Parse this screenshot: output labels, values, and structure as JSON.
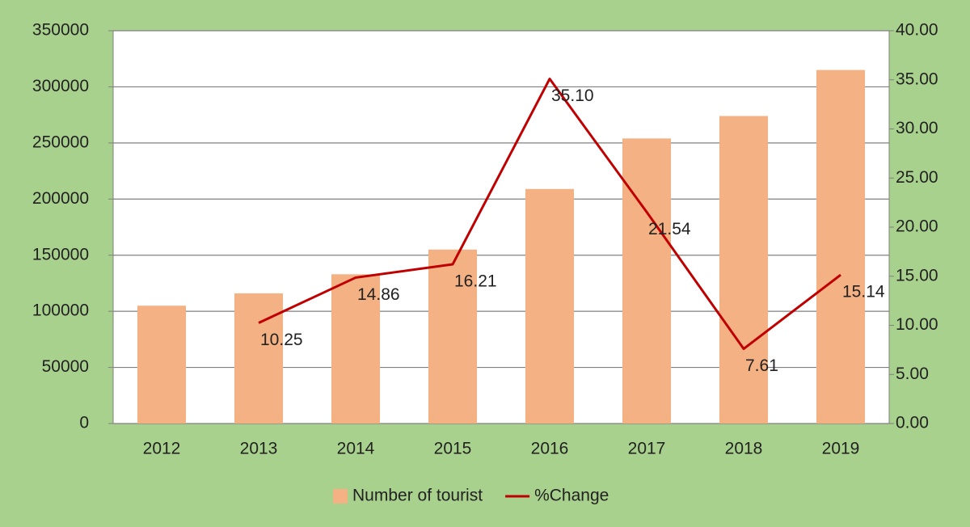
{
  "chart_data": {
    "type": "bar_line",
    "categories": [
      "2012",
      "2013",
      "2014",
      "2015",
      "2016",
      "2017",
      "2018",
      "2019"
    ],
    "series": [
      {
        "name": "Number of tourist",
        "color": "#f4b183",
        "type": "bar",
        "values": [
          105000,
          116000,
          133000,
          155000,
          209000,
          254000,
          274000,
          315000
        ]
      },
      {
        "name": "%Change",
        "color": "#c00000",
        "type": "line",
        "axis": "y2",
        "values": [
          null,
          10.25,
          14.86,
          16.21,
          35.1,
          21.54,
          7.61,
          15.14
        ],
        "value_labels": [
          null,
          "10.25",
          "14.86",
          "16.21",
          "35.10",
          "21.54",
          "7.61",
          "15.14"
        ]
      }
    ],
    "ylim": [
      0,
      350000
    ],
    "yticks": [
      0,
      50000,
      100000,
      150000,
      200000,
      250000,
      300000,
      350000
    ],
    "y2lim": [
      0,
      40
    ],
    "y2ticks": [
      {
        "value": 0,
        "label": "0.00"
      },
      {
        "value": 5,
        "label": "5.00"
      },
      {
        "value": 10,
        "label": "10.00"
      },
      {
        "value": 15,
        "label": "15.00"
      },
      {
        "value": 20,
        "label": "20.00"
      },
      {
        "value": 25,
        "label": "25.00"
      },
      {
        "value": 30,
        "label": "30.00"
      },
      {
        "value": 35,
        "label": "35.00"
      },
      {
        "value": 40,
        "label": "40.00"
      }
    ],
    "grid": true,
    "legend": "bottom"
  }
}
